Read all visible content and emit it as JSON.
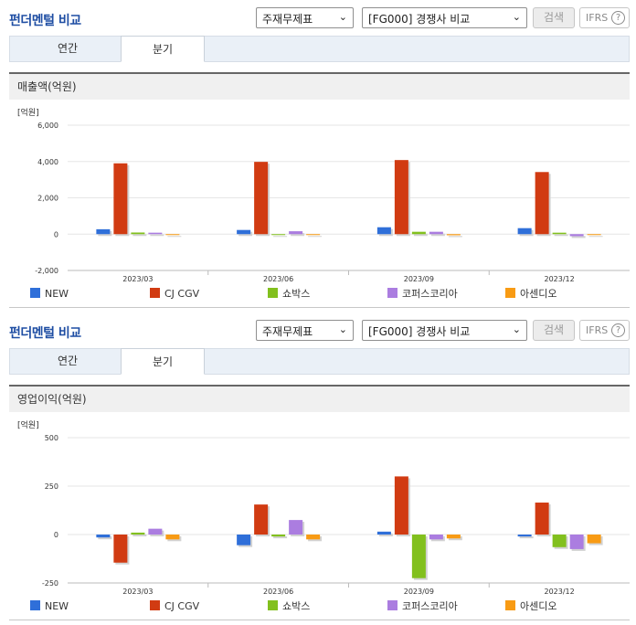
{
  "legend": {
    "colors": [
      "#2f6fd9",
      "#d13b12",
      "#82c01e",
      "#ab7de0",
      "#f89b14"
    ]
  },
  "panels": [
    {
      "section_title": "펀더멘털 비교",
      "select_statement": "주재무제표",
      "select_compare": "[FG000] 경쟁사 비교",
      "search_label": "검색",
      "ifrs_label": "IFRS",
      "ifrs_help": "?",
      "tabs": [
        "연간",
        "분기"
      ],
      "active_tab": "분기",
      "chart_title": "매출액(억원)"
    },
    {
      "section_title": "펀더멘털 비교",
      "select_statement": "주재무제표",
      "select_compare": "[FG000] 경쟁사 비교",
      "search_label": "검색",
      "ifrs_label": "IFRS",
      "ifrs_help": "?",
      "tabs": [
        "연간",
        "분기"
      ],
      "active_tab": "분기",
      "chart_title": "영업이익(억원)"
    }
  ],
  "chart_data": [
    {
      "type": "bar",
      "unit_label": "[억원]",
      "categories": [
        "2023/03",
        "2023/06",
        "2023/09",
        "2023/12"
      ],
      "ylim": [
        -2000,
        6000
      ],
      "yticks": [
        "6,000",
        "4,000",
        "2,000",
        "0",
        "-2,000"
      ],
      "ytick_values": [
        6000,
        4000,
        2000,
        0,
        -2000
      ],
      "grid": true,
      "legend_position": "bottom",
      "series": [
        {
          "name": "NEW",
          "values": [
            270,
            230,
            380,
            330
          ]
        },
        {
          "name": "CJ CGV",
          "values": [
            3900,
            3980,
            4080,
            3420
          ]
        },
        {
          "name": "쇼박스",
          "values": [
            90,
            -30,
            130,
            80
          ]
        },
        {
          "name": "코퍼스코리아",
          "values": [
            80,
            160,
            130,
            -110
          ]
        },
        {
          "name": "아센디오",
          "values": [
            -20,
            -20,
            -60,
            -30
          ]
        }
      ]
    },
    {
      "type": "bar",
      "unit_label": "[억원]",
      "categories": [
        "2023/03",
        "2023/06",
        "2023/09",
        "2023/12"
      ],
      "ylim": [
        -250,
        500
      ],
      "yticks": [
        "500",
        "250",
        "0",
        "-250"
      ],
      "ytick_values": [
        500,
        250,
        0,
        -250
      ],
      "grid": true,
      "legend_position": "bottom",
      "series": [
        {
          "name": "NEW",
          "values": [
            -15,
            -55,
            15,
            -10
          ]
        },
        {
          "name": "CJ CGV",
          "values": [
            -145,
            155,
            300,
            165
          ]
        },
        {
          "name": "쇼박스",
          "values": [
            10,
            -10,
            -225,
            -65
          ]
        },
        {
          "name": "코퍼스코리아",
          "values": [
            30,
            75,
            -25,
            -75
          ]
        },
        {
          "name": "아센디오",
          "values": [
            -25,
            -25,
            -20,
            -45
          ]
        }
      ]
    }
  ]
}
